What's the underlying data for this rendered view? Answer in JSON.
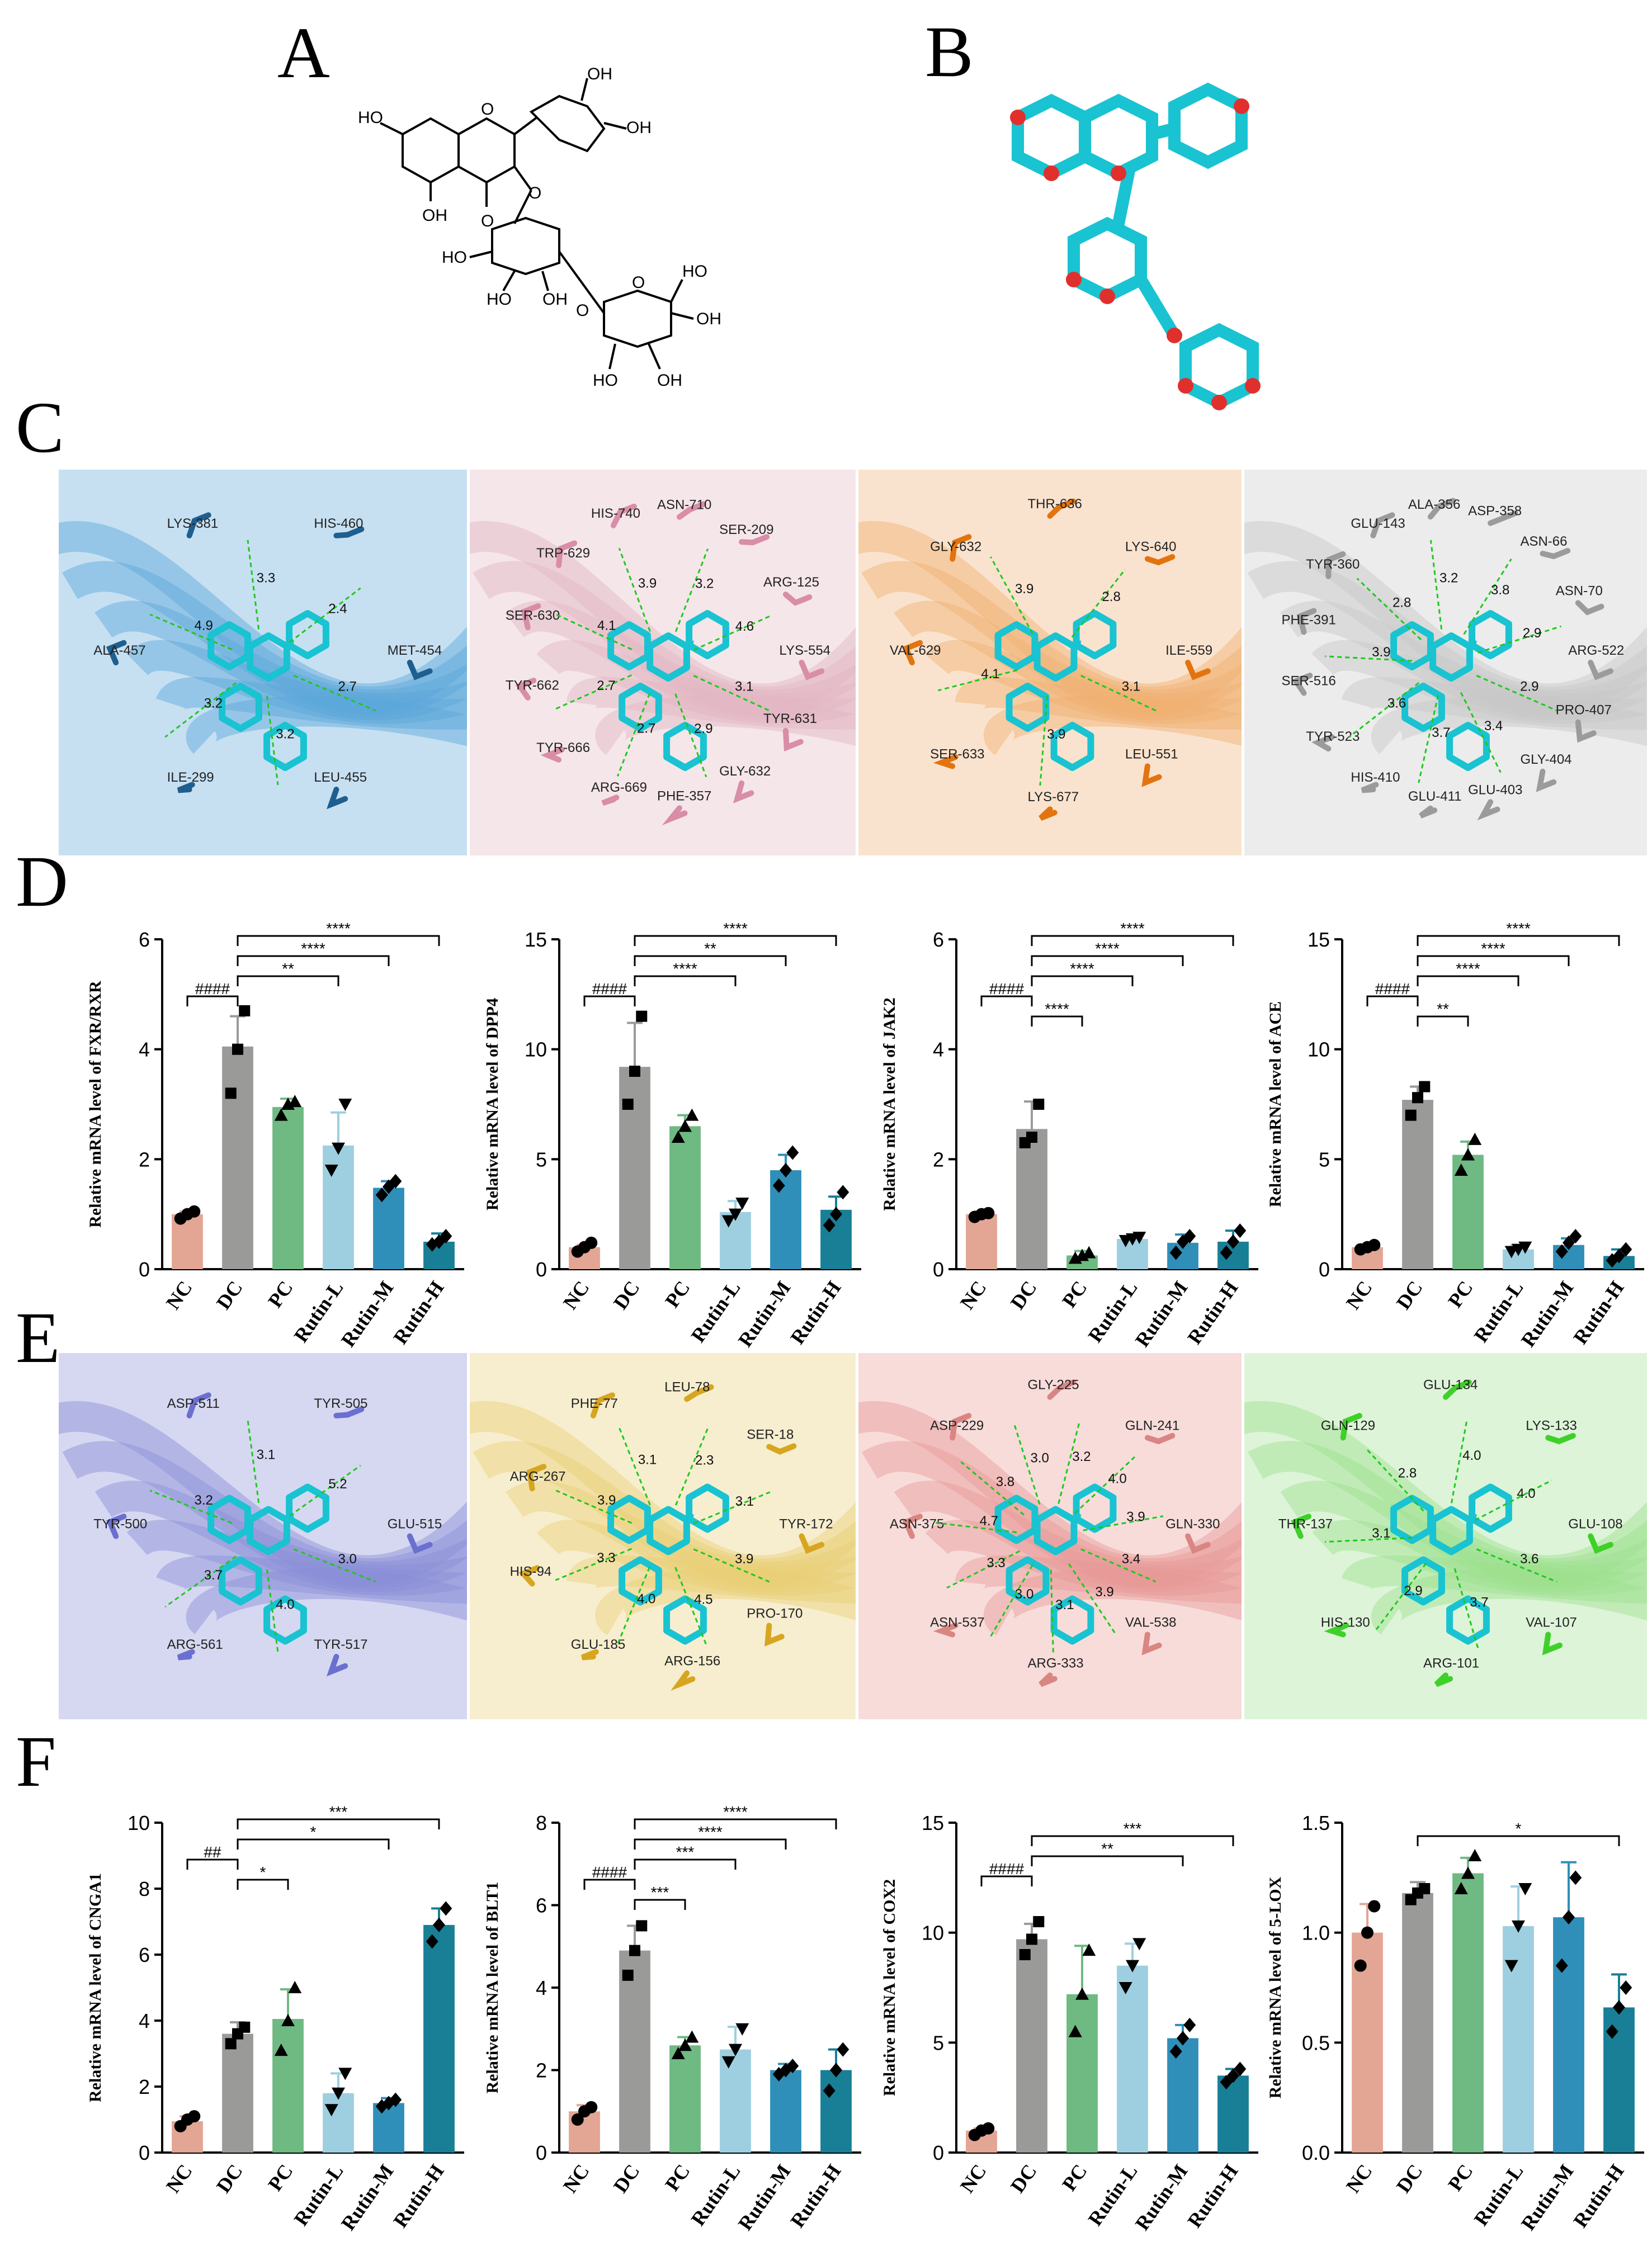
{
  "panels": {
    "A": "A",
    "B": "B",
    "C": "C",
    "D": "D",
    "E": "E",
    "F": "F"
  },
  "structure_A": {
    "atom_labels": [
      "HO",
      "OH",
      "OH",
      "OH",
      "O",
      "O",
      "O",
      "HO",
      "HO",
      "OH",
      "O",
      "O",
      "HO",
      "OH",
      "HO",
      "OH"
    ]
  },
  "colors": {
    "NC": "#e3a594",
    "DC": "#9a9a98",
    "PC": "#6fb982",
    "Rutin-L": "#9ecfe0",
    "Rutin-M": "#2f8fb9",
    "Rutin-H": "#187f96",
    "ligand": "#19c3d1"
  },
  "docking_C": [
    {
      "name": "FXR/RXR",
      "bg": "#5ba6da",
      "res_color": "#1f5f8f",
      "residues": [
        "MET-454",
        "LEU-455",
        "ILE-299",
        "ALA-457",
        "LYS-381",
        "HIS-460"
      ],
      "distances": [
        "2.7",
        "3.2",
        "3.2",
        "4.9",
        "3.3",
        "2.4"
      ]
    },
    {
      "name": "DPP4",
      "bg": "#e2b6c3",
      "res_color": "#d98da6",
      "residues": [
        "LYS-554",
        "TYR-631",
        "GLY-632",
        "PHE-357",
        "ARG-669",
        "TYR-666",
        "TYR-662",
        "SER-630",
        "TRP-629",
        "HIS-740",
        "ASN-710",
        "SER-209",
        "ARG-125"
      ],
      "distances": [
        "3.1",
        "2.9",
        "2.7",
        "2.7",
        "4.1",
        "3.9",
        "3.2",
        "4.6"
      ]
    },
    {
      "name": "JAK2",
      "bg": "#f0b072",
      "res_color": "#e2740f",
      "residues": [
        "ILE-559",
        "LEU-551",
        "LYS-677",
        "SER-633",
        "VAL-629",
        "GLY-632",
        "THR-636",
        "LYS-640"
      ],
      "distances": [
        "3.1",
        "3.9",
        "4.1",
        "3.9",
        "2.8"
      ]
    },
    {
      "name": "ACE",
      "bg": "#c8c8c8",
      "res_color": "#9b9b9b",
      "residues": [
        "ARG-522",
        "PRO-407",
        "GLY-404",
        "GLU-403",
        "GLU-411",
        "HIS-410",
        "TYR-523",
        "SER-516",
        "PHE-391",
        "TYR-360",
        "GLU-143",
        "ALA-356",
        "ASP-358",
        "ASN-66",
        "ASN-70"
      ],
      "distances": [
        "2.9",
        "3.4",
        "3.7",
        "3.6",
        "3.9",
        "2.8",
        "3.2",
        "3.8",
        "2.9"
      ]
    }
  ],
  "docking_E": [
    {
      "name": "CNGA1",
      "bg": "#8a8fd6",
      "res_color": "#6b6fd0",
      "residues": [
        "GLU-515",
        "TYR-517",
        "ARG-561",
        "TYR-500",
        "ASP-511",
        "TYR-505"
      ],
      "distances": [
        "3.0",
        "4.0",
        "3.7",
        "3.2",
        "3.1",
        "5.2"
      ]
    },
    {
      "name": "BLT1",
      "bg": "#e8cf76",
      "res_color": "#d7a520",
      "residues": [
        "TYR-172",
        "PRO-170",
        "ARG-156",
        "GLU-185",
        "HIS-94",
        "ARG-267",
        "PHE-77",
        "LEU-78",
        "SER-18"
      ],
      "distances": [
        "3.9",
        "4.5",
        "4.0",
        "3.3",
        "3.9",
        "3.1",
        "2.3",
        "3.1"
      ]
    },
    {
      "name": "COX2",
      "bg": "#e79a96",
      "res_color": "#d98683",
      "residues": [
        "GLN-330",
        "VAL-538",
        "ARG-333",
        "ASN-537",
        "ASN-375",
        "ASP-229",
        "GLY-225",
        "GLN-241"
      ],
      "distances": [
        "3.4",
        "3.9",
        "3.1",
        "3.0",
        "3.3",
        "4.7",
        "3.8",
        "3.0",
        "3.2",
        "4.0",
        "3.9"
      ]
    },
    {
      "name": "5-LOX",
      "bg": "#9ee08f",
      "res_color": "#3fd02a",
      "residues": [
        "GLU-108",
        "VAL-107",
        "ARG-101",
        "HIS-130",
        "THR-137",
        "GLN-129",
        "GLU-134",
        "LYS-133"
      ],
      "distances": [
        "3.6",
        "3.7",
        "2.9",
        "3.1",
        "2.8",
        "4.0",
        "4.0"
      ]
    }
  ],
  "chart_data": [
    {
      "type": "bar",
      "panel": "D",
      "ylabel": "Relative mRNA level of FXR/RXR",
      "ylim": [
        0,
        6
      ],
      "yticks": [
        "0",
        "2",
        "4",
        "6"
      ],
      "categories": [
        "NC",
        "DC",
        "PC",
        "Rutin-L",
        "Rutin-M",
        "Rutin-H"
      ],
      "values": [
        1.0,
        4.05,
        2.95,
        2.25,
        1.48,
        0.5
      ],
      "errors": [
        0.05,
        0.55,
        0.15,
        0.6,
        0.12,
        0.15
      ],
      "points": [
        [
          0.92,
          1.0,
          1.05
        ],
        [
          3.2,
          4.0,
          4.7
        ],
        [
          2.8,
          3.0,
          3.05
        ],
        [
          1.8,
          2.2,
          3.0
        ],
        [
          1.35,
          1.5,
          1.6
        ],
        [
          0.45,
          0.5,
          0.6
        ]
      ],
      "brackets": [
        {
          "from": 0,
          "to": 1,
          "label": "####"
        },
        {
          "from": 1,
          "to": 3,
          "label": "**"
        },
        {
          "from": 1,
          "to": 4,
          "label": "****"
        },
        {
          "from": 1,
          "to": 5,
          "label": "****"
        }
      ]
    },
    {
      "type": "bar",
      "panel": "D",
      "ylabel": "Relative mRNA level of DPP4",
      "ylim": [
        0,
        15
      ],
      "yticks": [
        "0",
        "5",
        "10",
        "15"
      ],
      "categories": [
        "NC",
        "DC",
        "PC",
        "Rutin-L",
        "Rutin-M",
        "Rutin-H"
      ],
      "values": [
        1.0,
        9.2,
        6.5,
        2.6,
        4.5,
        2.7
      ],
      "errors": [
        0.1,
        2.0,
        0.5,
        0.5,
        0.7,
        0.6
      ],
      "points": [
        [
          0.8,
          1.0,
          1.2
        ],
        [
          7.5,
          9.0,
          11.5
        ],
        [
          6.0,
          6.5,
          7.0
        ],
        [
          2.2,
          2.5,
          3.0
        ],
        [
          3.8,
          4.5,
          5.3
        ],
        [
          2.0,
          2.5,
          3.5
        ]
      ],
      "brackets": [
        {
          "from": 0,
          "to": 1,
          "label": "####"
        },
        {
          "from": 1,
          "to": 3,
          "label": "****"
        },
        {
          "from": 1,
          "to": 4,
          "label": "**"
        },
        {
          "from": 1,
          "to": 5,
          "label": "****"
        }
      ]
    },
    {
      "type": "bar",
      "panel": "D",
      "ylabel": "Relative mRNA level of JAK2",
      "ylim": [
        0,
        6
      ],
      "yticks": [
        "0",
        "2",
        "4",
        "6"
      ],
      "categories": [
        "NC",
        "DC",
        "PC",
        "Rutin-L",
        "Rutin-M",
        "Rutin-H"
      ],
      "values": [
        1.0,
        2.55,
        0.25,
        0.55,
        0.48,
        0.5
      ],
      "errors": [
        0.05,
        0.5,
        0.08,
        0.05,
        0.15,
        0.2
      ],
      "points": [
        [
          0.95,
          1.0,
          1.02
        ],
        [
          2.3,
          2.4,
          3.0
        ],
        [
          0.2,
          0.25,
          0.3
        ],
        [
          0.52,
          0.55,
          0.58
        ],
        [
          0.3,
          0.5,
          0.6
        ],
        [
          0.3,
          0.5,
          0.7
        ]
      ],
      "brackets": [
        {
          "from": 0,
          "to": 1,
          "label": "####"
        },
        {
          "from": 1,
          "to": 2,
          "label": "****"
        },
        {
          "from": 1,
          "to": 3,
          "label": "****"
        },
        {
          "from": 1,
          "to": 4,
          "label": "****"
        },
        {
          "from": 1,
          "to": 5,
          "label": "****"
        }
      ]
    },
    {
      "type": "bar",
      "panel": "D",
      "ylabel": "Relative mRNA level of ACE",
      "ylim": [
        0,
        15
      ],
      "yticks": [
        "0",
        "5",
        "10",
        "15"
      ],
      "categories": [
        "NC",
        "DC",
        "PC",
        "Rutin-L",
        "Rutin-M",
        "Rutin-H"
      ],
      "values": [
        1.0,
        7.7,
        5.2,
        0.9,
        1.1,
        0.6
      ],
      "errors": [
        0.1,
        0.6,
        0.6,
        0.2,
        0.3,
        0.3
      ],
      "points": [
        [
          0.9,
          1.0,
          1.1
        ],
        [
          7.0,
          7.8,
          8.3
        ],
        [
          4.5,
          5.2,
          5.9
        ],
        [
          0.8,
          0.9,
          1.0
        ],
        [
          0.8,
          1.2,
          1.5
        ],
        [
          0.4,
          0.6,
          0.9
        ]
      ],
      "brackets": [
        {
          "from": 0,
          "to": 1,
          "label": "####"
        },
        {
          "from": 1,
          "to": 2,
          "label": "**"
        },
        {
          "from": 1,
          "to": 3,
          "label": "****"
        },
        {
          "from": 1,
          "to": 4,
          "label": "****"
        },
        {
          "from": 1,
          "to": 5,
          "label": "****"
        }
      ]
    },
    {
      "type": "bar",
      "panel": "F",
      "ylabel": "Relative mRNA level of CNGA1",
      "ylim": [
        0,
        10
      ],
      "yticks": [
        "0",
        "2",
        "4",
        "6",
        "8",
        "10"
      ],
      "categories": [
        "NC",
        "DC",
        "PC",
        "Rutin-L",
        "Rutin-M",
        "Rutin-H"
      ],
      "values": [
        0.95,
        3.6,
        4.05,
        1.8,
        1.5,
        6.9
      ],
      "errors": [
        0.15,
        0.35,
        0.9,
        0.6,
        0.15,
        0.5
      ],
      "points": [
        [
          0.8,
          1.0,
          1.1
        ],
        [
          3.3,
          3.6,
          3.8
        ],
        [
          3.1,
          4.0,
          5.0
        ],
        [
          1.3,
          1.8,
          2.4
        ],
        [
          1.4,
          1.5,
          1.6
        ],
        [
          6.4,
          6.9,
          7.4
        ]
      ],
      "brackets": [
        {
          "from": 0,
          "to": 1,
          "label": "##"
        },
        {
          "from": 1,
          "to": 2,
          "label": "*"
        },
        {
          "from": 1,
          "to": 4,
          "label": "*"
        },
        {
          "from": 1,
          "to": 5,
          "label": "***"
        }
      ]
    },
    {
      "type": "bar",
      "panel": "F",
      "ylabel": "Relative mRNA level of BLT1",
      "ylim": [
        0,
        8
      ],
      "yticks": [
        "0",
        "2",
        "4",
        "6",
        "8"
      ],
      "categories": [
        "NC",
        "DC",
        "PC",
        "Rutin-L",
        "Rutin-M",
        "Rutin-H"
      ],
      "values": [
        1.0,
        4.9,
        2.6,
        2.5,
        2.0,
        2.0
      ],
      "errors": [
        0.15,
        0.6,
        0.2,
        0.55,
        0.15,
        0.5
      ],
      "points": [
        [
          0.8,
          1.0,
          1.1
        ],
        [
          4.3,
          4.9,
          5.5
        ],
        [
          2.4,
          2.6,
          2.8
        ],
        [
          2.2,
          2.5,
          3.0
        ],
        [
          1.9,
          2.0,
          2.1
        ],
        [
          1.5,
          2.0,
          2.5
        ]
      ],
      "brackets": [
        {
          "from": 0,
          "to": 1,
          "label": "####"
        },
        {
          "from": 1,
          "to": 2,
          "label": "***"
        },
        {
          "from": 1,
          "to": 3,
          "label": "***"
        },
        {
          "from": 1,
          "to": 4,
          "label": "****"
        },
        {
          "from": 1,
          "to": 5,
          "label": "****"
        }
      ]
    },
    {
      "type": "bar",
      "panel": "F",
      "ylabel": "Relative mRNA level of COX2",
      "ylim": [
        0,
        15
      ],
      "yticks": [
        "0",
        "5",
        "10",
        "15"
      ],
      "categories": [
        "NC",
        "DC",
        "PC",
        "Rutin-L",
        "Rutin-M",
        "Rutin-H"
      ],
      "values": [
        1.0,
        9.7,
        7.2,
        8.5,
        5.2,
        3.5
      ],
      "errors": [
        0.1,
        0.7,
        2.2,
        1.0,
        0.6,
        0.3
      ],
      "points": [
        [
          0.8,
          1.0,
          1.1
        ],
        [
          9.0,
          9.7,
          10.5
        ],
        [
          5.5,
          7.2,
          9.2
        ],
        [
          7.5,
          8.5,
          9.5
        ],
        [
          4.6,
          5.2,
          5.8
        ],
        [
          3.2,
          3.5,
          3.8
        ]
      ],
      "brackets": [
        {
          "from": 0,
          "to": 1,
          "label": "####"
        },
        {
          "from": 1,
          "to": 4,
          "label": "**"
        },
        {
          "from": 1,
          "to": 5,
          "label": "***"
        }
      ]
    },
    {
      "type": "bar",
      "panel": "F",
      "ylabel": "Relative mRNA level of 5-LOX",
      "ylim": [
        0,
        1.5
      ],
      "yticks": [
        "0.0",
        "0.5",
        "1.0",
        "1.5"
      ],
      "categories": [
        "NC",
        "DC",
        "PC",
        "Rutin-L",
        "Rutin-M",
        "Rutin-H"
      ],
      "values": [
        1.0,
        1.18,
        1.27,
        1.03,
        1.07,
        0.66
      ],
      "errors": [
        0.13,
        0.05,
        0.07,
        0.18,
        0.25,
        0.15
      ],
      "points": [
        [
          0.85,
          1.0,
          1.12
        ],
        [
          1.15,
          1.18,
          1.2
        ],
        [
          1.2,
          1.27,
          1.35
        ],
        [
          0.85,
          1.03,
          1.2
        ],
        [
          0.85,
          1.07,
          1.25
        ],
        [
          0.55,
          0.66,
          0.75
        ]
      ],
      "brackets": [
        {
          "from": 1,
          "to": 5,
          "label": "*"
        }
      ]
    }
  ]
}
